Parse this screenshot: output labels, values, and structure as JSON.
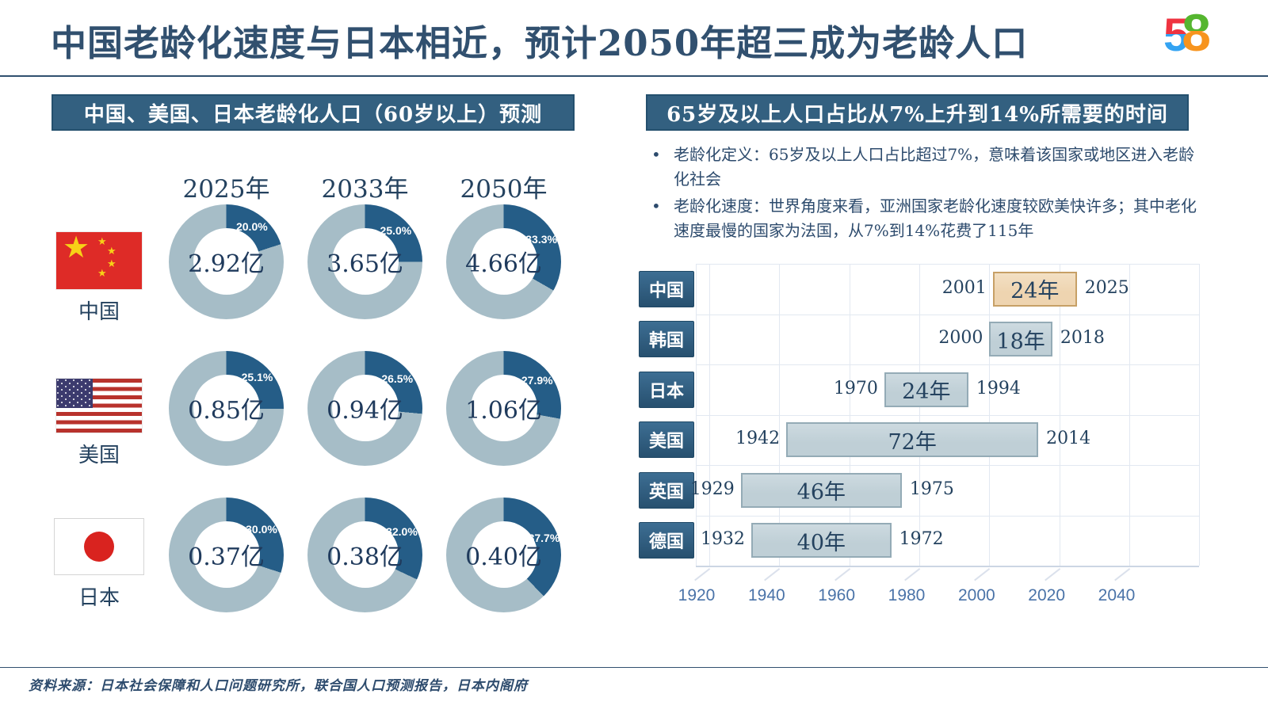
{
  "title": "中国老龄化速度与日本相近，预计2050年超三成为老龄人口",
  "logo": {
    "digit5": "5",
    "digit8": "8"
  },
  "bullets": [
    "老龄化定义：65岁及以上人口占比超过7%，意味着该国家或地区进入老龄化社会",
    "老龄化速度：世界角度来看，亚洲国家老龄化速度较欧美快许多；其中老化速度最慢的国家为法国，从7%到14%花费了115年"
  ],
  "footer_source": "资料来源：日本社会保障和人口问题研究所，联合国人口预测报告，日本内阁府",
  "colors": {
    "accent_navy": "#31506f",
    "header_bg": "#336080",
    "header_border": "#24506e",
    "donut_dark": "#255d87",
    "donut_light": "#a6bdc7",
    "gantt_bar": "#bfcfd6",
    "gantt_bar_border": "#94abb6",
    "gantt_highlight": "#eed4b0",
    "gantt_highlight_border": "#c7a066",
    "country_box_top": "#3d6e93",
    "country_box_bottom": "#27506f",
    "grid_line": "#e2e8f1",
    "axis_label": "#4a73a8",
    "flag_red": "#de2b27",
    "flag_yellow": "#f7d117",
    "us_red": "#b8322c",
    "us_blue": "#3c3b6e",
    "japan_red": "#d9231f",
    "logo_red": "#ef3340",
    "logo_blue": "#33a3f2",
    "logo_green": "#55b62f",
    "logo_orange": "#f7941e"
  },
  "chart_data": [
    {
      "type": "pie",
      "subtype": "donut-grid",
      "title": "中国、美国、日本老龄化人口（60岁以上）预测",
      "columns_years": [
        "2025年",
        "2033年",
        "2050年"
      ],
      "series": [
        {
          "name": "中国",
          "totals": [
            "2.92亿",
            "3.65亿",
            "4.66亿"
          ],
          "aged_pct": [
            20.0,
            25.0,
            33.3
          ],
          "pct_labels": [
            "20.0%",
            "25.0%",
            "33.3%"
          ]
        },
        {
          "name": "美国",
          "totals": [
            "0.85亿",
            "0.94亿",
            "1.06亿"
          ],
          "aged_pct": [
            25.1,
            26.5,
            27.9
          ],
          "pct_labels": [
            "25.1%",
            "26.5%",
            "27.9%"
          ]
        },
        {
          "name": "日本",
          "totals": [
            "0.37亿",
            "0.38亿",
            "0.40亿"
          ],
          "aged_pct": [
            30.0,
            32.0,
            37.7
          ],
          "pct_labels": [
            "30.0%",
            "32.0%",
            "37.7%"
          ]
        }
      ]
    },
    {
      "type": "bar",
      "subtype": "timeline-gantt",
      "title": "65岁及以上人口占比从7%上升到14%所需要的时间",
      "rows": [
        {
          "country": "中国",
          "start": 2001,
          "end": 2025,
          "duration": "24年",
          "highlight": true
        },
        {
          "country": "韩国",
          "start": 2000,
          "end": 2018,
          "duration": "18年",
          "highlight": false
        },
        {
          "country": "日本",
          "start": 1970,
          "end": 1994,
          "duration": "24年",
          "highlight": false
        },
        {
          "country": "美国",
          "start": 1942,
          "end": 2014,
          "duration": "72年",
          "highlight": false
        },
        {
          "country": "英国",
          "start": 1929,
          "end": 1975,
          "duration": "46年",
          "highlight": false
        },
        {
          "country": "德国",
          "start": 1932,
          "end": 1972,
          "duration": "40年",
          "highlight": false
        }
      ],
      "x_ticks": [
        1920,
        1940,
        1960,
        1980,
        2000,
        2020,
        2040
      ],
      "xlim": [
        1920,
        2060
      ],
      "grid": true,
      "legend": false
    }
  ]
}
